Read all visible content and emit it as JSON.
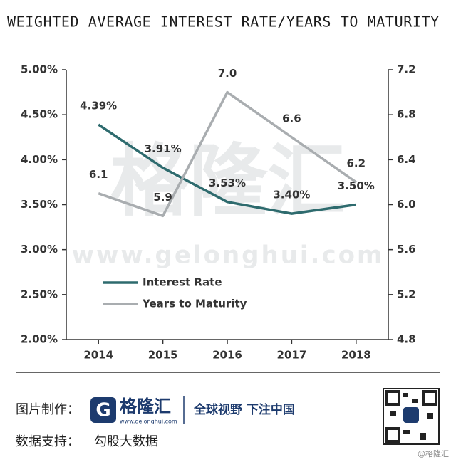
{
  "chart_data": {
    "type": "line",
    "title": "WEIGHTED AVERAGE INTEREST RATE/YEARS TO MATURITY",
    "categories": [
      "2014",
      "2015",
      "2016",
      "2017",
      "2018"
    ],
    "series": [
      {
        "name": "Interest Rate",
        "color": "#2e6b6e",
        "values": [
          4.39,
          3.91,
          3.53,
          3.4,
          3.5
        ],
        "value_labels": [
          "4.39%",
          "3.91%",
          "3.53%",
          "3.40%",
          "3.50%"
        ]
      },
      {
        "name": "Years to Maturity",
        "color": "#a9adb0",
        "axis": "y2",
        "values": [
          6.1,
          5.9,
          7.0,
          6.6,
          6.2
        ],
        "value_labels": [
          "6.1",
          "5.9",
          "7.0",
          "6.6",
          "6.2"
        ]
      }
    ],
    "ylim": [
      2,
      5
    ],
    "yticks": [
      {
        "value": 2,
        "label": "2.00%"
      },
      {
        "value": 2.5,
        "label": "2.50%"
      },
      {
        "value": 3,
        "label": "3.00%"
      },
      {
        "value": 3.5,
        "label": "3.50%"
      },
      {
        "value": 4,
        "label": "4.00%"
      },
      {
        "value": 4.5,
        "label": "4.50%"
      },
      {
        "value": 5,
        "label": "5.00%"
      }
    ],
    "y2lim": [
      4.8,
      7.2
    ],
    "y2ticks": [
      4.8,
      5.2,
      5.6,
      {
        "value": 6,
        "label": "6.0"
      },
      6.4,
      6.8,
      7.2
    ],
    "grid": false,
    "legend": "lower-left"
  },
  "watermark": {
    "brand": "格隆汇",
    "url": "www.gelonghui.com"
  },
  "footer": {
    "made_by_label": "图片制作：",
    "brand": "格隆汇",
    "brand_url": "www.gelonghui.com",
    "slogan": "全球视野 下注中国",
    "data_label": "数据支持：",
    "data_source": "勾股大数据",
    "credit": "@格隆汇"
  }
}
